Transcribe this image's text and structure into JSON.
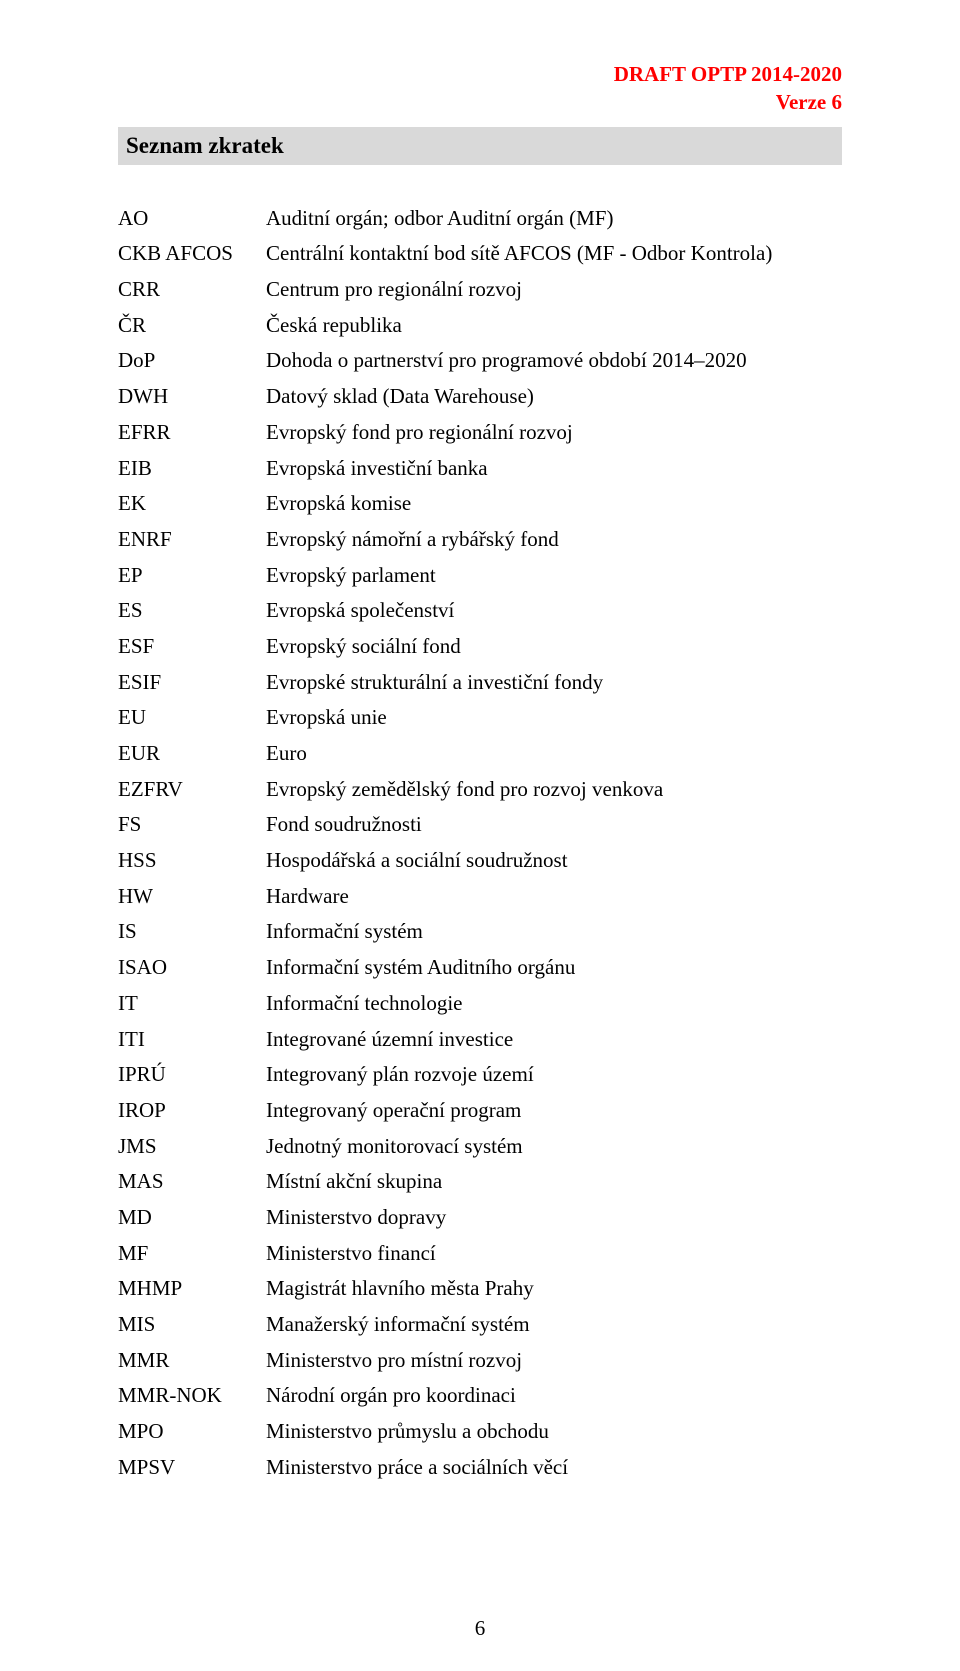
{
  "header": {
    "line1": "DRAFT OPTP 2014-2020",
    "line2": "Verze 6"
  },
  "section_title": "Seznam zkratek",
  "page_number": "6",
  "abbrs": [
    {
      "key": "AO",
      "val": "Auditní orgán; odbor Auditní orgán (MF)"
    },
    {
      "key": "CKB AFCOS",
      "val": "Centrální kontaktní bod sítě AFCOS (MF - Odbor Kontrola)"
    },
    {
      "key": "CRR",
      "val": "Centrum pro regionální rozvoj"
    },
    {
      "key": "ČR",
      "val": "Česká republika"
    },
    {
      "key": "DoP",
      "val": "Dohoda o partnerství pro programové období 2014–2020"
    },
    {
      "key": "DWH",
      "val": "Datový sklad (Data Warehouse)"
    },
    {
      "key": "EFRR",
      "val": "Evropský fond pro regionální rozvoj"
    },
    {
      "key": "EIB",
      "val": "Evropská investiční banka"
    },
    {
      "key": "EK",
      "val": "Evropská komise"
    },
    {
      "key": "ENRF",
      "val": "Evropský námořní a rybářský fond"
    },
    {
      "key": "EP",
      "val": "Evropský parlament"
    },
    {
      "key": "ES",
      "val": "Evropská společenství"
    },
    {
      "key": "ESF",
      "val": "Evropský sociální fond"
    },
    {
      "key": "ESIF",
      "val": "Evropské strukturální a investiční fondy"
    },
    {
      "key": "EU",
      "val": "Evropská unie"
    },
    {
      "key": "EUR",
      "val": "Euro"
    },
    {
      "key": "EZFRV",
      "val": "Evropský zemědělský fond pro rozvoj venkova"
    },
    {
      "key": "FS",
      "val": "Fond soudružnosti"
    },
    {
      "key": "HSS",
      "val": "Hospodářská a sociální soudružnost"
    },
    {
      "key": "HW",
      "val": "Hardware"
    },
    {
      "key": "IS",
      "val": "Informační systém"
    },
    {
      "key": "ISAO",
      "val": "Informační systém Auditního orgánu"
    },
    {
      "key": "IT",
      "val": "Informační technologie"
    },
    {
      "key": "ITI",
      "val": "Integrované územní investice"
    },
    {
      "key": "IPRÚ",
      "val": "Integrovaný plán rozvoje území"
    },
    {
      "key": "IROP",
      "val": "Integrovaný operační program"
    },
    {
      "key": "JMS",
      "val": "Jednotný monitorovací systém"
    },
    {
      "key": "MAS",
      "val": "Místní akční skupina"
    },
    {
      "key": "MD",
      "val": "Ministerstvo dopravy"
    },
    {
      "key": "MF",
      "val": "Ministerstvo financí"
    },
    {
      "key": "MHMP",
      "val": "Magistrát hlavního města Prahy"
    },
    {
      "key": "MIS",
      "val": "Manažerský informační systém"
    },
    {
      "key": "MMR",
      "val": "Ministerstvo pro místní rozvoj"
    },
    {
      "key": "MMR-NOK",
      "val": "Národní orgán pro koordinaci"
    },
    {
      "key": "MPO",
      "val": "Ministerstvo průmyslu a obchodu"
    },
    {
      "key": "MPSV",
      "val": "Ministerstvo práce a sociálních věcí"
    }
  ]
}
